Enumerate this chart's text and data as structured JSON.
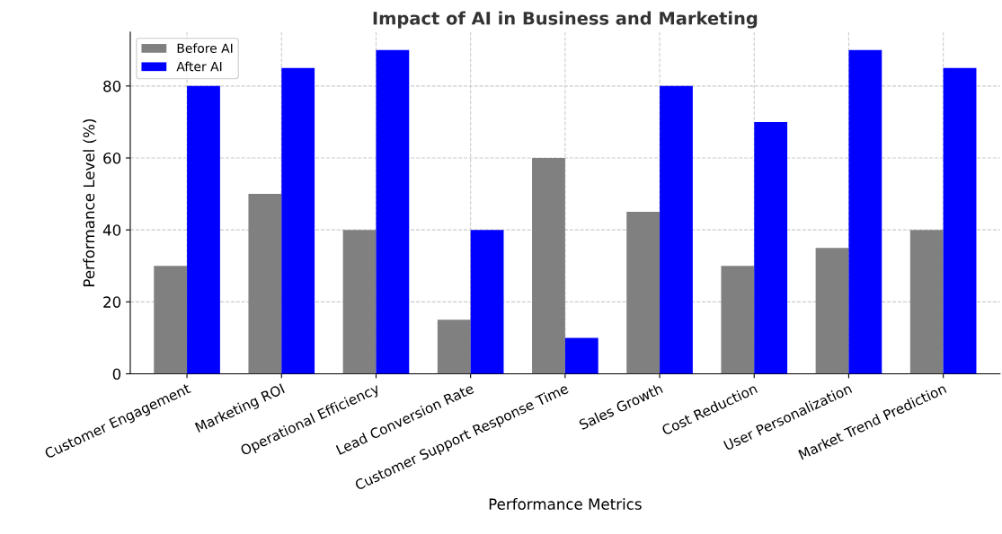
{
  "chart_data": {
    "type": "bar",
    "title": "Impact of AI in Business and Marketing",
    "xlabel": "Performance Metrics",
    "ylabel": "Performance Level (%)",
    "categories": [
      "Customer Engagement",
      "Marketing ROI",
      "Operational Efficiency",
      "Lead Conversion Rate",
      "Customer Support Response Time",
      "Sales Growth",
      "Cost Reduction",
      "User Personalization",
      "Market Trend Prediction"
    ],
    "series": [
      {
        "name": "Before AI",
        "color": "#808080",
        "values": [
          30,
          50,
          40,
          15,
          60,
          45,
          30,
          35,
          40
        ]
      },
      {
        "name": "After AI",
        "color": "#0000ff",
        "values": [
          80,
          85,
          90,
          40,
          10,
          80,
          70,
          90,
          85
        ]
      }
    ],
    "ylim": [
      0,
      95
    ],
    "yticks": [
      0,
      20,
      40,
      60,
      80
    ],
    "grid": true,
    "legend": "top left"
  }
}
